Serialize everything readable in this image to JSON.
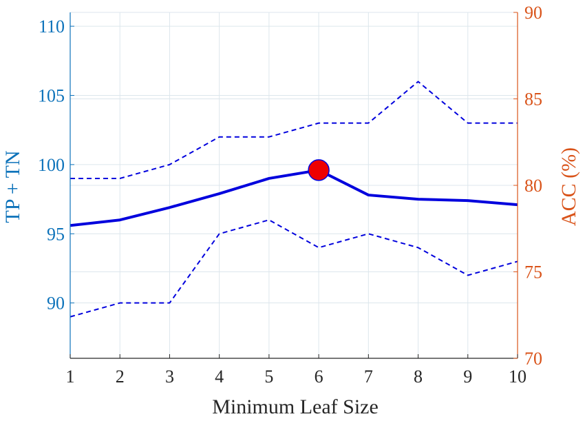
{
  "chart_data": {
    "type": "line",
    "xlabel": "Minimum Leaf Size",
    "ylabel_left": "TP + TN",
    "ylabel_right": "ACC (%)",
    "x": [
      1,
      2,
      3,
      4,
      5,
      6,
      7,
      8,
      9,
      10
    ],
    "x_ticks": [
      "1",
      "2",
      "3",
      "4",
      "5",
      "6",
      "7",
      "8",
      "9",
      "10"
    ],
    "xlim": [
      1,
      10
    ],
    "ylim_left": [
      86,
      111
    ],
    "ylim_right": [
      70,
      90
    ],
    "y_ticks_left": [
      "90",
      "95",
      "100",
      "105",
      "110"
    ],
    "y_ticks_right": [
      "70",
      "75",
      "80",
      "85",
      "90"
    ],
    "grid": true,
    "series": [
      {
        "values": [
          95.6,
          96.0,
          96.9,
          97.9,
          99.0,
          99.6,
          97.8,
          97.5,
          97.4,
          97.1
        ],
        "style": "solid",
        "axis": "left"
      },
      {
        "values": [
          99.0,
          99.0,
          100.0,
          102.0,
          102.0,
          103.0,
          103.0,
          106.0,
          103.0,
          103.0
        ],
        "style": "dashed",
        "axis": "left"
      },
      {
        "values": [
          89.0,
          90.0,
          90.0,
          95.0,
          96.0,
          94.0,
          95.0,
          94.0,
          92.0,
          93.0
        ],
        "style": "dashed",
        "axis": "left"
      }
    ],
    "highlight": {
      "x": 6,
      "y": 99.6
    },
    "colors": {
      "line": "#0000dd",
      "marker_fill": "#ee0000",
      "left_axis": "#0c72ba",
      "right_axis": "#d95319",
      "grid": "#dce6ec",
      "x_axis": "#262626"
    }
  }
}
